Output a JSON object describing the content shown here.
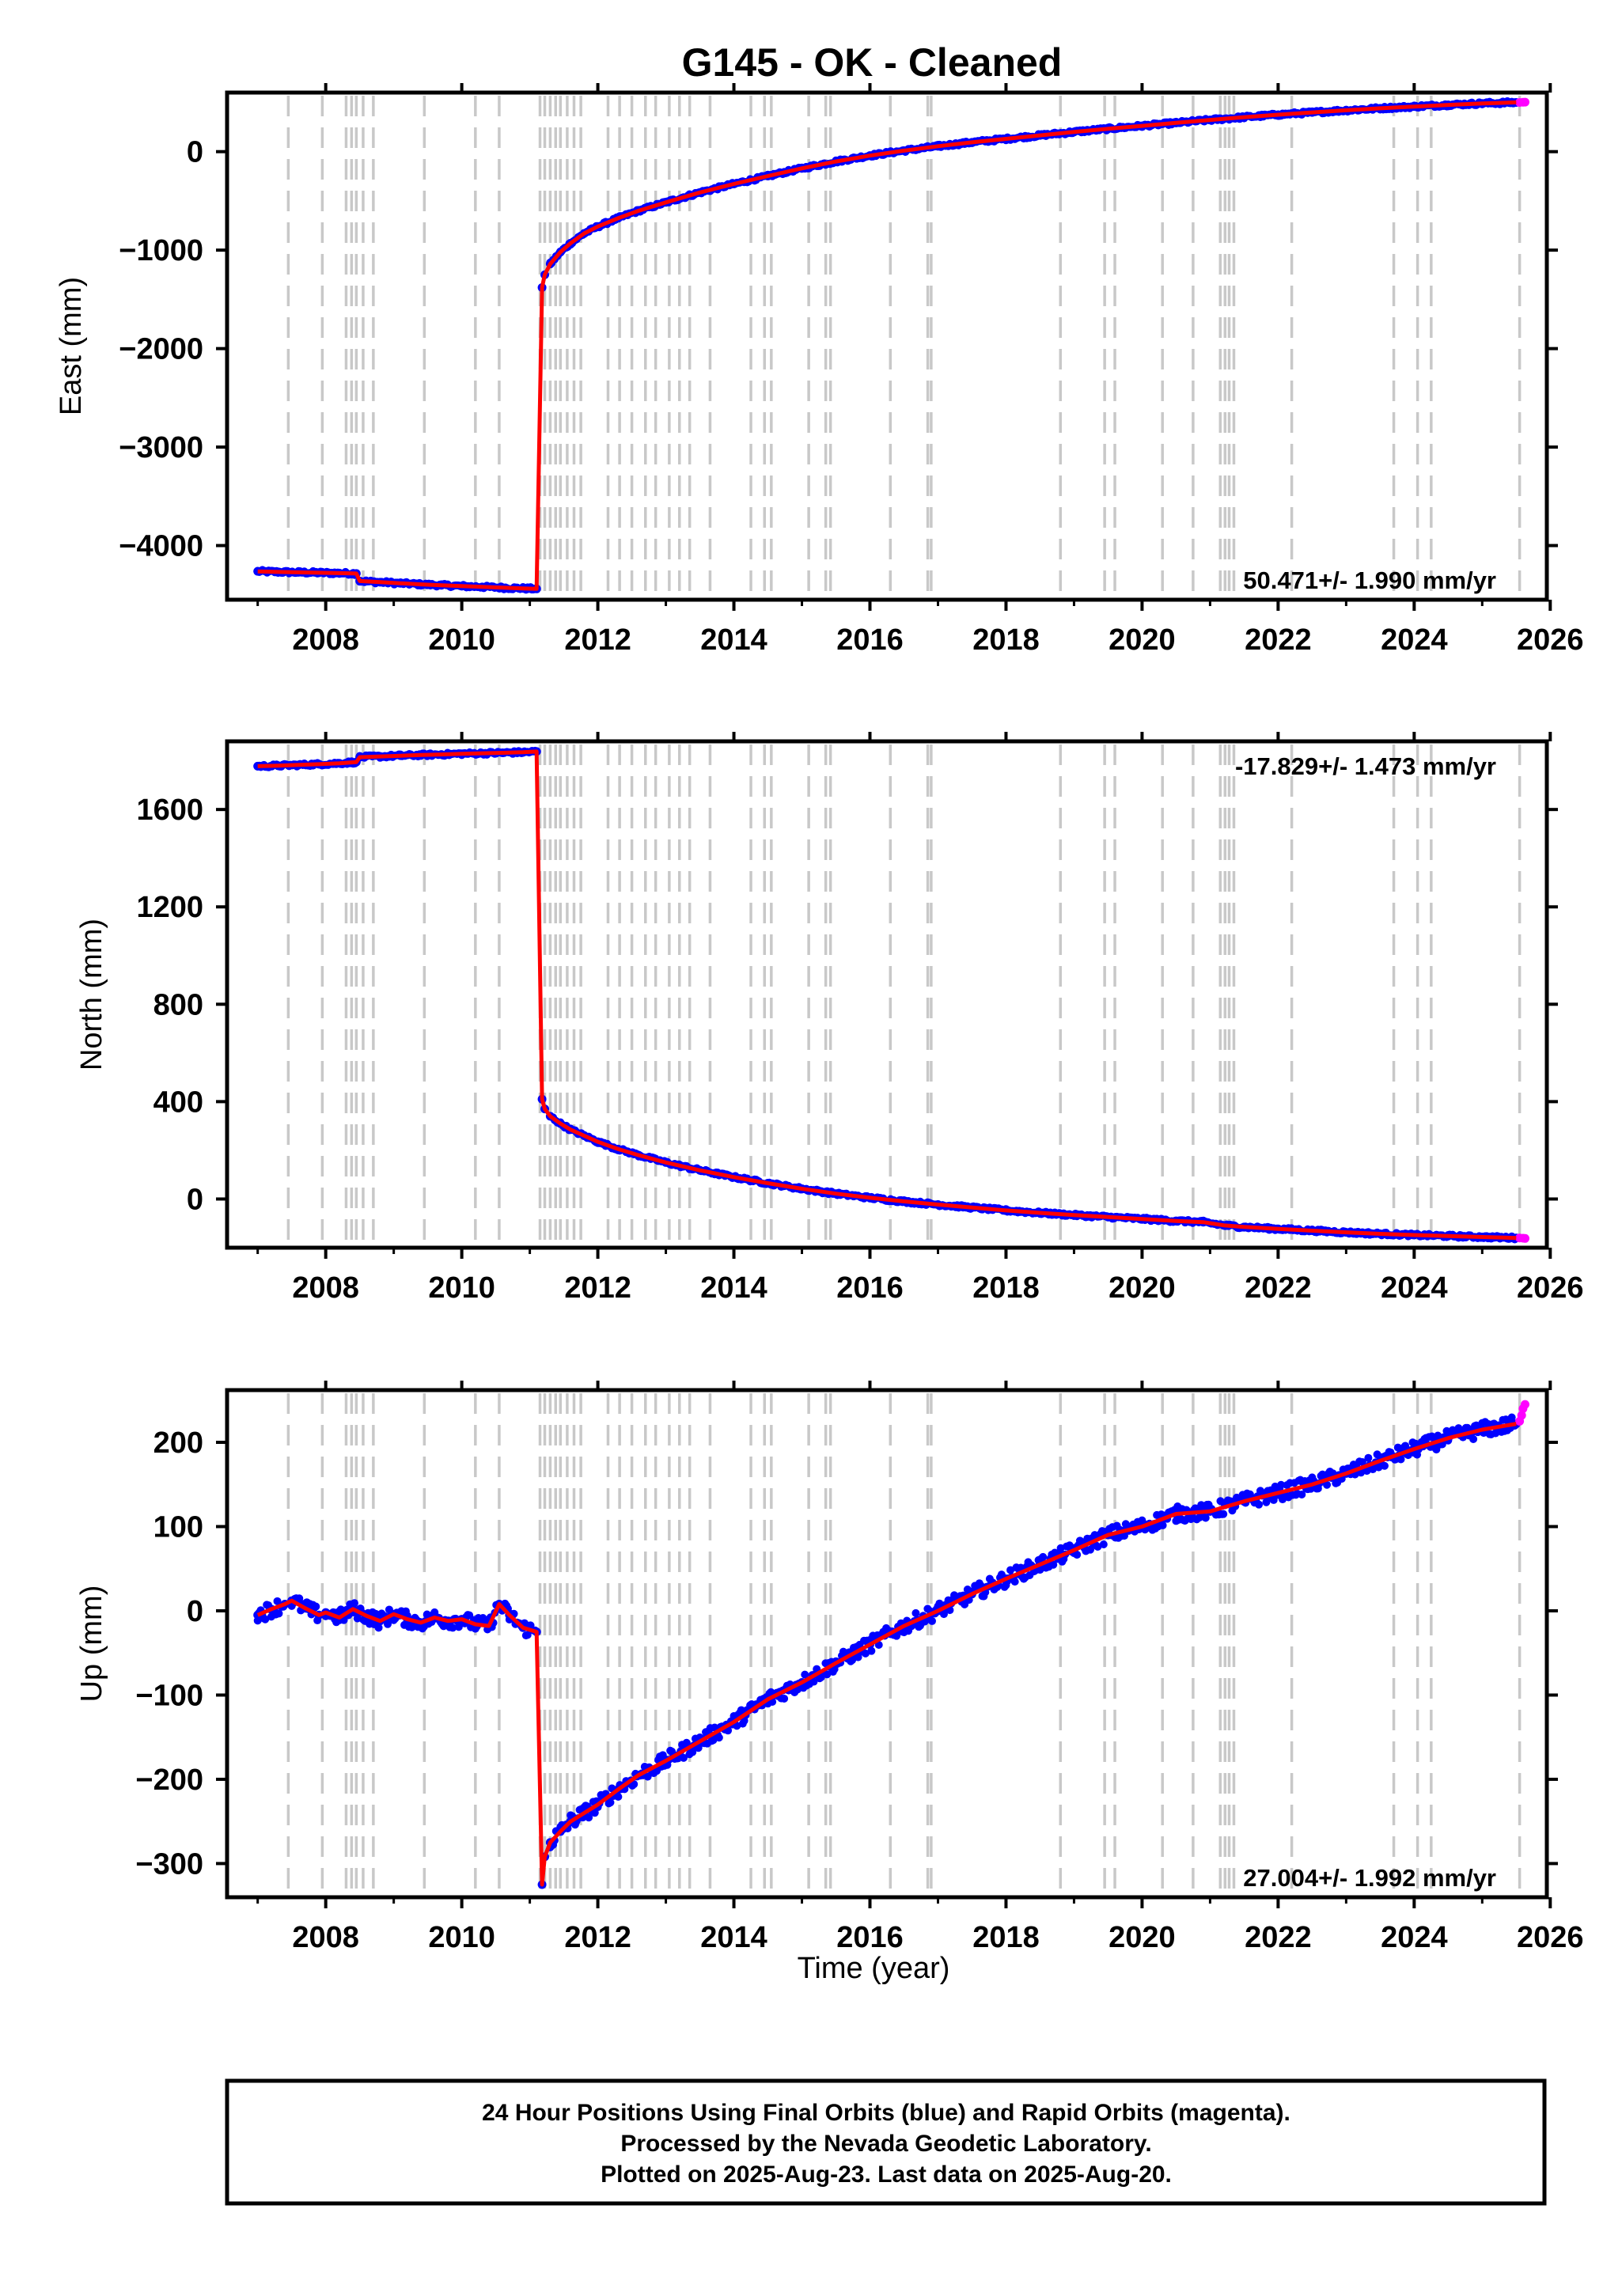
{
  "figure": {
    "title": "G145  - OK - Cleaned",
    "x_axis_label": "Time (year)",
    "footer": [
      "24 Hour Positions Using Final Orbits (blue) and Rapid Orbits (magenta).",
      "Processed by the Nevada Geodetic Laboratory.",
      "Plotted on 2025-Aug-23. Last data on 2025-Aug-20."
    ],
    "colors": {
      "final_orbits": "#0000ff",
      "rapid_orbits": "#ff00ff",
      "model": "#ff0000",
      "event_lines": "#c8c8c8",
      "frame": "#000000"
    }
  },
  "chart_data": [
    {
      "type": "scatter",
      "ylabel": "East (mm)",
      "rate": "50.471+/- 1.990 mm/yr",
      "rate_position": "bottom-right",
      "xlim": [
        2006.55,
        2025.95
      ],
      "ylim": [
        -4550,
        600
      ],
      "x_ticks": [
        "2008",
        "2010",
        "2012",
        "2014",
        "2016",
        "2018",
        "2020",
        "2022",
        "2024",
        "2026"
      ],
      "y_ticks": [
        "0",
        "−1000",
        "−2000",
        "−3000",
        "−4000"
      ],
      "y_tick_values": [
        0,
        -1000,
        -2000,
        -3000,
        -4000
      ],
      "event_lines": [
        2007.45,
        2007.95,
        2008.3,
        2008.38,
        2008.45,
        2008.55,
        2008.7,
        2009.45,
        2010.2,
        2010.55,
        2011.15,
        2011.22,
        2011.3,
        2011.38,
        2011.45,
        2011.55,
        2011.65,
        2011.75,
        2012.15,
        2012.32,
        2012.5,
        2012.7,
        2012.85,
        2013.05,
        2013.2,
        2013.35,
        2013.65,
        2014.25,
        2014.45,
        2014.55,
        2015.1,
        2015.35,
        2015.42,
        2016.3,
        2016.85,
        2016.9,
        2018.8,
        2019.45,
        2019.6,
        2020.3,
        2020.75,
        2021.15,
        2021.22,
        2021.28,
        2021.35,
        2022.2,
        2023.7,
        2024.05,
        2024.25,
        2025.55
      ],
      "series": [
        {
          "name": "Final Orbits",
          "points": [
            [
              2007.0,
              -4262
            ],
            [
              2007.3,
              -4268
            ],
            [
              2007.6,
              -4272
            ],
            [
              2007.9,
              -4276
            ],
            [
              2008.2,
              -4280
            ],
            [
              2008.45,
              -4284
            ],
            [
              2008.5,
              -4360
            ],
            [
              2008.8,
              -4372
            ],
            [
              2009.1,
              -4383
            ],
            [
              2009.4,
              -4394
            ],
            [
              2009.7,
              -4403
            ],
            [
              2010.0,
              -4412
            ],
            [
              2010.3,
              -4420
            ],
            [
              2010.6,
              -4428
            ],
            [
              2010.9,
              -4435
            ],
            [
              2011.1,
              -4440
            ],
            [
              2011.18,
              -1380
            ],
            [
              2011.22,
              -1250
            ],
            [
              2011.3,
              -1140
            ],
            [
              2011.45,
              -1020
            ],
            [
              2011.6,
              -930
            ],
            [
              2011.8,
              -830
            ],
            [
              2012.0,
              -760
            ],
            [
              2012.3,
              -675
            ],
            [
              2012.6,
              -600
            ],
            [
              2013.0,
              -515
            ],
            [
              2013.5,
              -415
            ],
            [
              2014.0,
              -328
            ],
            [
              2014.5,
              -248
            ],
            [
              2015.0,
              -170
            ],
            [
              2015.5,
              -100
            ],
            [
              2016.0,
              -40
            ],
            [
              2016.5,
              10
            ],
            [
              2017.0,
              55
            ],
            [
              2017.5,
              95
            ],
            [
              2018.0,
              130
            ],
            [
              2018.5,
              165
            ],
            [
              2019.0,
              200
            ],
            [
              2019.5,
              232
            ],
            [
              2020.0,
              262
            ],
            [
              2020.5,
              292
            ],
            [
              2021.0,
              322
            ],
            [
              2021.5,
              350
            ],
            [
              2022.0,
              375
            ],
            [
              2022.5,
              398
            ],
            [
              2023.0,
              420
            ],
            [
              2023.5,
              440
            ],
            [
              2024.0,
              458
            ],
            [
              2024.5,
              475
            ],
            [
              2025.0,
              490
            ],
            [
              2025.5,
              500
            ]
          ]
        },
        {
          "name": "Rapid Orbits",
          "points": [
            [
              2025.55,
              500
            ],
            [
              2025.6,
              502
            ],
            [
              2025.63,
              503
            ]
          ]
        }
      ]
    },
    {
      "type": "scatter",
      "ylabel": "North (mm)",
      "rate": "-17.829+/- 1.473 mm/yr",
      "rate_position": "top-right",
      "xlim": [
        2006.55,
        2025.95
      ],
      "ylim": [
        -200,
        1880
      ],
      "x_ticks": [
        "2008",
        "2010",
        "2012",
        "2014",
        "2016",
        "2018",
        "2020",
        "2022",
        "2024",
        "2026"
      ],
      "y_ticks": [
        "1600",
        "1200",
        "800",
        "400",
        "0"
      ],
      "y_tick_values": [
        1600,
        1200,
        800,
        400,
        0
      ],
      "event_lines": [
        2007.45,
        2007.95,
        2008.3,
        2008.38,
        2008.45,
        2008.55,
        2008.7,
        2009.45,
        2010.2,
        2010.55,
        2011.15,
        2011.22,
        2011.3,
        2011.38,
        2011.45,
        2011.55,
        2011.65,
        2011.75,
        2012.15,
        2012.32,
        2012.5,
        2012.7,
        2012.85,
        2013.05,
        2013.2,
        2013.35,
        2013.65,
        2014.25,
        2014.45,
        2014.55,
        2015.1,
        2015.35,
        2015.42,
        2016.3,
        2016.85,
        2016.9,
        2018.8,
        2019.45,
        2019.6,
        2020.3,
        2020.75,
        2021.15,
        2021.22,
        2021.28,
        2021.35,
        2022.2,
        2023.7,
        2024.05,
        2024.25,
        2025.55
      ],
      "series": [
        {
          "name": "Final Orbits",
          "points": [
            [
              2007.0,
              1778
            ],
            [
              2007.3,
              1780
            ],
            [
              2007.6,
              1783
            ],
            [
              2007.9,
              1786
            ],
            [
              2008.2,
              1790
            ],
            [
              2008.45,
              1795
            ],
            [
              2008.5,
              1815
            ],
            [
              2008.8,
              1818
            ],
            [
              2009.1,
              1821
            ],
            [
              2009.4,
              1824
            ],
            [
              2009.7,
              1826
            ],
            [
              2010.0,
              1829
            ],
            [
              2010.3,
              1831
            ],
            [
              2010.6,
              1833
            ],
            [
              2010.9,
              1835
            ],
            [
              2011.1,
              1838
            ],
            [
              2011.18,
              410
            ],
            [
              2011.22,
              370
            ],
            [
              2011.3,
              340
            ],
            [
              2011.45,
              310
            ],
            [
              2011.6,
              285
            ],
            [
              2011.8,
              260
            ],
            [
              2012.0,
              235
            ],
            [
              2012.3,
              205
            ],
            [
              2012.6,
              180
            ],
            [
              2013.0,
              150
            ],
            [
              2013.5,
              118
            ],
            [
              2014.0,
              90
            ],
            [
              2014.5,
              65
            ],
            [
              2015.0,
              42
            ],
            [
              2015.5,
              22
            ],
            [
              2016.0,
              5
            ],
            [
              2016.5,
              -10
            ],
            [
              2017.0,
              -23
            ],
            [
              2017.5,
              -35
            ],
            [
              2018.0,
              -47
            ],
            [
              2018.5,
              -57
            ],
            [
              2019.0,
              -66
            ],
            [
              2019.5,
              -74
            ],
            [
              2020.0,
              -82
            ],
            [
              2020.5,
              -90
            ],
            [
              2020.9,
              -95
            ],
            [
              2021.2,
              -108
            ],
            [
              2021.5,
              -115
            ],
            [
              2022.0,
              -123
            ],
            [
              2022.5,
              -130
            ],
            [
              2023.0,
              -137
            ],
            [
              2023.5,
              -143
            ],
            [
              2024.0,
              -148
            ],
            [
              2024.5,
              -152
            ],
            [
              2025.0,
              -156
            ],
            [
              2025.5,
              -160
            ]
          ]
        },
        {
          "name": "Rapid Orbits",
          "points": [
            [
              2025.55,
              -160
            ],
            [
              2025.6,
              -161
            ],
            [
              2025.63,
              -162
            ]
          ]
        }
      ]
    },
    {
      "type": "scatter",
      "ylabel": "Up (mm)",
      "rate": "27.004+/- 1.992 mm/yr",
      "rate_position": "bottom-right",
      "xlim": [
        2006.55,
        2025.95
      ],
      "ylim": [
        -340,
        262
      ],
      "x_ticks": [
        "2008",
        "2010",
        "2012",
        "2014",
        "2016",
        "2018",
        "2020",
        "2022",
        "2024",
        "2026"
      ],
      "y_ticks": [
        "200",
        "100",
        "0",
        "−100",
        "−200",
        "−300"
      ],
      "y_tick_values": [
        200,
        100,
        0,
        -100,
        -200,
        -300
      ],
      "event_lines": [
        2007.45,
        2007.95,
        2008.3,
        2008.38,
        2008.45,
        2008.55,
        2008.7,
        2009.45,
        2010.2,
        2010.55,
        2011.15,
        2011.22,
        2011.3,
        2011.38,
        2011.45,
        2011.55,
        2011.65,
        2011.75,
        2012.15,
        2012.32,
        2012.5,
        2012.7,
        2012.85,
        2013.05,
        2013.2,
        2013.35,
        2013.65,
        2014.25,
        2014.45,
        2014.55,
        2015.1,
        2015.35,
        2015.42,
        2016.3,
        2016.85,
        2016.9,
        2018.8,
        2019.45,
        2019.6,
        2020.3,
        2020.75,
        2021.15,
        2021.22,
        2021.28,
        2021.35,
        2022.2,
        2023.7,
        2024.05,
        2024.25,
        2025.55
      ],
      "series": [
        {
          "name": "Final Orbits",
          "points": [
            [
              2007.0,
              -5
            ],
            [
              2007.2,
              2
            ],
            [
              2007.4,
              8
            ],
            [
              2007.5,
              12
            ],
            [
              2007.7,
              3
            ],
            [
              2007.9,
              -5
            ],
            [
              2008.0,
              -2
            ],
            [
              2008.2,
              -8
            ],
            [
              2008.4,
              2
            ],
            [
              2008.6,
              -6
            ],
            [
              2008.8,
              -12
            ],
            [
              2009.0,
              -4
            ],
            [
              2009.2,
              -10
            ],
            [
              2009.4,
              -14
            ],
            [
              2009.6,
              -8
            ],
            [
              2009.8,
              -12
            ],
            [
              2010.0,
              -10
            ],
            [
              2010.2,
              -16
            ],
            [
              2010.4,
              -18
            ],
            [
              2010.55,
              8
            ],
            [
              2010.7,
              -5
            ],
            [
              2010.9,
              -20
            ],
            [
              2011.1,
              -25
            ],
            [
              2011.18,
              -325
            ],
            [
              2011.22,
              -292
            ],
            [
              2011.3,
              -275
            ],
            [
              2011.45,
              -262
            ],
            [
              2011.6,
              -250
            ],
            [
              2011.8,
              -240
            ],
            [
              2012.0,
              -230
            ],
            [
              2012.3,
              -212
            ],
            [
              2012.6,
              -195
            ],
            [
              2013.0,
              -178
            ],
            [
              2013.5,
              -155
            ],
            [
              2014.0,
              -132
            ],
            [
              2014.5,
              -105
            ],
            [
              2015.0,
              -85
            ],
            [
              2015.5,
              -62
            ],
            [
              2016.0,
              -40
            ],
            [
              2016.5,
              -18
            ],
            [
              2017.0,
              0
            ],
            [
              2017.5,
              20
            ],
            [
              2018.0,
              38
            ],
            [
              2018.5,
              55
            ],
            [
              2019.0,
              72
            ],
            [
              2019.5,
              90
            ],
            [
              2020.0,
              100
            ],
            [
              2020.5,
              115
            ],
            [
              2021.0,
              118
            ],
            [
              2021.5,
              130
            ],
            [
              2022.0,
              140
            ],
            [
              2022.5,
              150
            ],
            [
              2023.0,
              163
            ],
            [
              2023.5,
              178
            ],
            [
              2024.0,
              192
            ],
            [
              2024.5,
              205
            ],
            [
              2025.0,
              215
            ],
            [
              2025.5,
              222
            ]
          ]
        },
        {
          "name": "Rapid Orbits",
          "points": [
            [
              2025.55,
              225
            ],
            [
              2025.58,
              232
            ],
            [
              2025.6,
              240
            ],
            [
              2025.63,
              245
            ]
          ]
        }
      ]
    }
  ]
}
